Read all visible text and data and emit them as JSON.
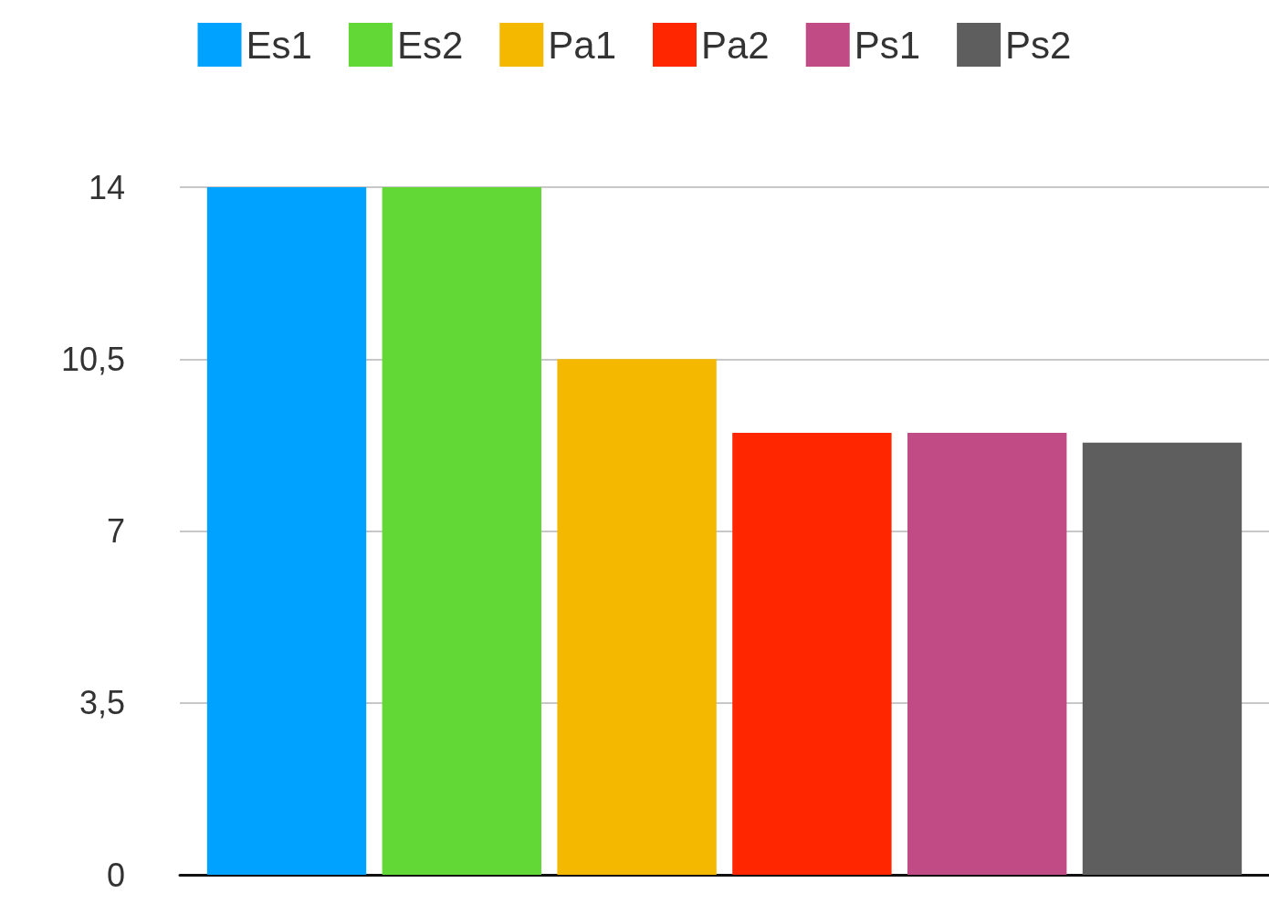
{
  "chart_data": {
    "type": "bar",
    "categories": [
      null
    ],
    "series": [
      {
        "name": "Es1",
        "color": "#00a2ff",
        "values": [
          14
        ]
      },
      {
        "name": "Es2",
        "color": "#61d836",
        "values": [
          14
        ]
      },
      {
        "name": "Pa1",
        "color": "#f5b800",
        "values": [
          10.5
        ]
      },
      {
        "name": "Pa2",
        "color": "#ff2600",
        "values": [
          9
        ]
      },
      {
        "name": "Ps1",
        "color": "#c04b85",
        "values": [
          9
        ]
      },
      {
        "name": "Ps2",
        "color": "#5e5e5e",
        "values": [
          8.8
        ]
      }
    ],
    "ylim": [
      0,
      14
    ],
    "yticks": [
      0,
      {
        "value": 3.5,
        "label": "3,5"
      },
      7,
      {
        "value": 10.5,
        "label": "10,5"
      },
      14
    ],
    "grid": "y",
    "legend": "top"
  }
}
